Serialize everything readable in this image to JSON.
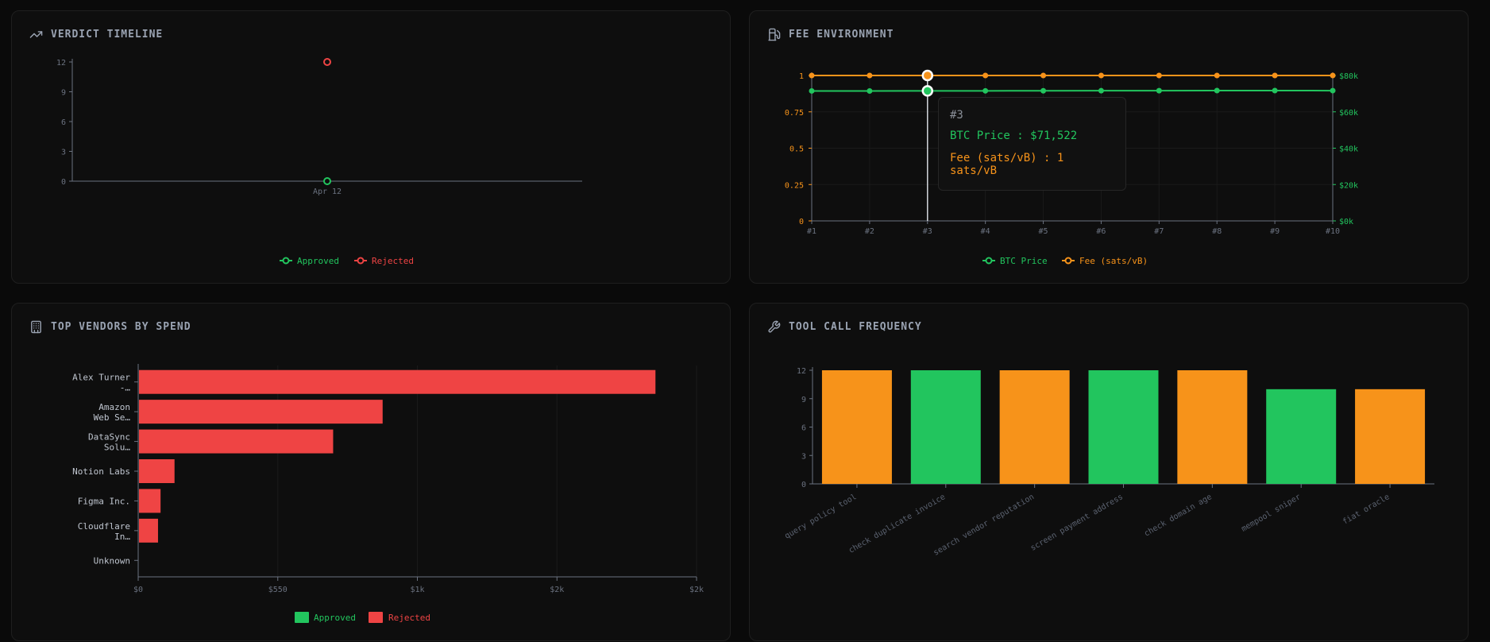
{
  "colors": {
    "approved": "#22c55e",
    "rejected": "#ef4444",
    "fee": "#f7931a",
    "axis": "#6b7280",
    "grid": "#1a1a1a"
  },
  "panels": {
    "verdict": {
      "title": "VERDICT TIMELINE",
      "icon": "trending-up-icon"
    },
    "fee": {
      "title": "FEE ENVIRONMENT",
      "icon": "fuel-pump-icon"
    },
    "vendors": {
      "title": "TOP VENDORS BY SPEND",
      "icon": "building-icon"
    },
    "tools": {
      "title": "TOOL CALL FREQUENCY",
      "icon": "wrench-icon"
    }
  },
  "tooltip": {
    "title": "#3",
    "btc_line": "BTC Price : $71,522",
    "fee_line": "Fee (sats/vB) : 1 sats/vB"
  },
  "chart_data": [
    {
      "id": "verdict",
      "type": "line",
      "title": "VERDICT TIMELINE",
      "x": [
        "Apr 12"
      ],
      "ylim": [
        0,
        12
      ],
      "yticks": [
        0,
        3,
        6,
        9,
        12
      ],
      "series": [
        {
          "name": "Approved",
          "values": [
            0
          ]
        },
        {
          "name": "Rejected",
          "values": [
            12
          ]
        }
      ],
      "legend": "bottom-center"
    },
    {
      "id": "fee",
      "type": "line",
      "title": "FEE ENVIRONMENT",
      "x": [
        "#1",
        "#2",
        "#3",
        "#4",
        "#5",
        "#6",
        "#7",
        "#8",
        "#9",
        "#10"
      ],
      "left_axis": {
        "ylim": [
          0,
          1
        ],
        "ticks": [
          "0",
          "0.25",
          "0.5",
          "0.75",
          "1"
        ]
      },
      "right_axis": {
        "ylim": [
          0,
          80000
        ],
        "ticks": [
          "$0k",
          "$20k",
          "$40k",
          "$60k",
          "$80k"
        ]
      },
      "series": [
        {
          "name": "BTC Price",
          "axis": "right",
          "values": [
            71500,
            71480,
            71522,
            71550,
            71600,
            71620,
            71650,
            71700,
            71680,
            71660
          ]
        },
        {
          "name": "Fee (sats/vB)",
          "axis": "left",
          "values": [
            1,
            1,
            1,
            1,
            1,
            1,
            1,
            1,
            1,
            1
          ]
        }
      ],
      "active_index": 2,
      "legend": "bottom-center"
    },
    {
      "id": "vendors",
      "type": "bar",
      "orientation": "horizontal",
      "title": "TOP VENDORS BY SPEND",
      "categories": [
        [
          "Alex Turner",
          "-…"
        ],
        [
          "Amazon",
          "Web Se…"
        ],
        [
          "DataSync",
          "Solu…"
        ],
        [
          "Notion Labs"
        ],
        [
          "Figma Inc."
        ],
        [
          "Cloudflare",
          "In…"
        ],
        [
          "Unknown"
        ]
      ],
      "xlim": [
        0,
        2200
      ],
      "xticks": [
        0,
        550,
        1100,
        1650,
        2200
      ],
      "xtick_labels": [
        "$0",
        "$550",
        "$1k",
        "$2k",
        "$2k"
      ],
      "series": [
        {
          "name": "Approved",
          "values": [
            0,
            0,
            0,
            0,
            0,
            0,
            0
          ]
        },
        {
          "name": "Rejected",
          "values": [
            2035,
            960,
            765,
            140,
            85,
            75,
            0
          ]
        }
      ],
      "legend": "bottom-center"
    },
    {
      "id": "tools",
      "type": "bar",
      "title": "TOOL CALL FREQUENCY",
      "categories": [
        "query policy tool",
        "check duplicate invoice",
        "search vendor reputation",
        "screen payment address",
        "check domain age",
        "mempool sniper",
        "fiat oracle"
      ],
      "values": [
        12,
        12,
        12,
        12,
        12,
        10,
        10
      ],
      "bar_colors": [
        "fee",
        "approved",
        "fee",
        "approved",
        "fee",
        "approved",
        "fee"
      ],
      "ylim": [
        0,
        12
      ],
      "yticks": [
        0,
        3,
        6,
        9,
        12
      ]
    }
  ]
}
